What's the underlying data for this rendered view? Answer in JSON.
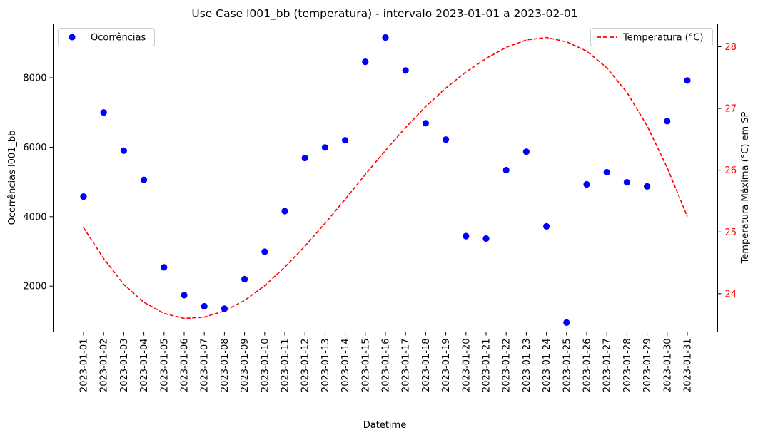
{
  "chart_data": {
    "type": "scatter+line",
    "title": "Use Case l001_bb (temperatura) - intervalo 2023-01-01 a 2023-02-01",
    "xlabel": "Datetime",
    "ylabel_left": "Ocorrências l001_bb",
    "ylabel_right": "Temperatura Máxima (°C) em SP",
    "x": [
      "2023-01-01",
      "2023-01-02",
      "2023-01-03",
      "2023-01-04",
      "2023-01-05",
      "2023-01-06",
      "2023-01-07",
      "2023-01-08",
      "2023-01-09",
      "2023-01-10",
      "2023-01-11",
      "2023-01-12",
      "2023-01-13",
      "2023-01-14",
      "2023-01-15",
      "2023-01-16",
      "2023-01-17",
      "2023-01-18",
      "2023-01-19",
      "2023-01-20",
      "2023-01-21",
      "2023-01-22",
      "2023-01-23",
      "2023-01-24",
      "2023-01-25",
      "2023-01-26",
      "2023-01-27",
      "2023-01-28",
      "2023-01-29",
      "2023-01-30",
      "2023-01-31"
    ],
    "left_axis": {
      "ylim": [
        680,
        9550
      ],
      "ticks": [
        2000,
        4000,
        6000,
        8000
      ]
    },
    "right_axis": {
      "ylim": [
        23.38,
        28.37
      ],
      "ticks": [
        24,
        25,
        26,
        27,
        28
      ]
    },
    "series": [
      {
        "name": "Ocorrências",
        "axis": "left",
        "style": "markers",
        "color": "#0000ff",
        "values": [
          4580,
          7000,
          5900,
          5060,
          2540,
          1740,
          1420,
          1350,
          2200,
          2990,
          4160,
          5690,
          5990,
          6200,
          8460,
          9160,
          8210,
          6690,
          6220,
          3440,
          3370,
          5340,
          5870,
          3720,
          950,
          4930,
          5280,
          4990,
          4870,
          6750,
          7920
        ]
      },
      {
        "name": "Temperatura (°C)",
        "axis": "right",
        "style": "dashed-line",
        "color": "#ff0000",
        "values": [
          25.07,
          24.57,
          24.15,
          23.86,
          23.68,
          23.6,
          23.62,
          23.72,
          23.89,
          24.13,
          24.43,
          24.77,
          25.14,
          25.53,
          25.93,
          26.32,
          26.69,
          27.03,
          27.33,
          27.59,
          27.81,
          27.99,
          28.11,
          28.15,
          28.08,
          27.93,
          27.66,
          27.26,
          26.72,
          26.04,
          25.25
        ]
      }
    ],
    "legend_left": {
      "position": "top-left",
      "label": "Ocorrências"
    },
    "legend_right": {
      "position": "top-right",
      "label": "Temperatura (°C)"
    },
    "grid": false
  }
}
